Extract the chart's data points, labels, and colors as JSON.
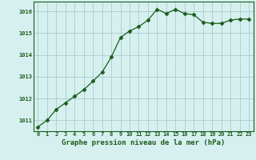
{
  "x": [
    0,
    1,
    2,
    3,
    4,
    5,
    6,
    7,
    8,
    9,
    10,
    11,
    12,
    13,
    14,
    15,
    16,
    17,
    18,
    19,
    20,
    21,
    22,
    23
  ],
  "y": [
    1010.7,
    1011.0,
    1011.5,
    1011.8,
    1012.1,
    1012.4,
    1012.8,
    1013.2,
    1013.9,
    1014.8,
    1015.1,
    1015.3,
    1015.6,
    1016.1,
    1015.9,
    1016.1,
    1015.9,
    1015.85,
    1015.5,
    1015.45,
    1015.45,
    1015.6,
    1015.65,
    1015.65
  ],
  "line_color": "#1a5c1a",
  "marker": "D",
  "marker_size": 2.5,
  "bg_color": "#d6f0f0",
  "grid_color": "#aacccc",
  "xlabel": "Graphe pression niveau de la mer (hPa)",
  "xlabel_color": "#1a5c1a",
  "xlabel_fontsize": 6.5,
  "tick_color": "#1a5c1a",
  "ylim": [
    1010.5,
    1016.45
  ],
  "yticks": [
    1011,
    1012,
    1013,
    1014,
    1015,
    1016
  ],
  "xticks": [
    0,
    1,
    2,
    3,
    4,
    5,
    6,
    7,
    8,
    9,
    10,
    11,
    12,
    13,
    14,
    15,
    16,
    17,
    18,
    19,
    20,
    21,
    22,
    23
  ]
}
